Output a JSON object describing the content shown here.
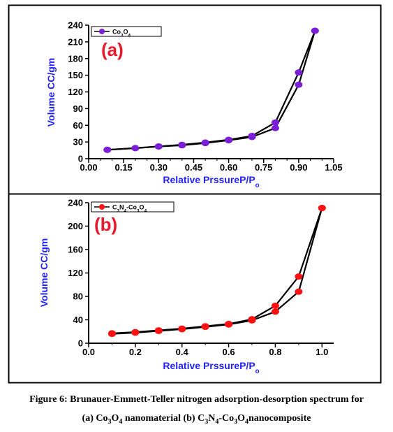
{
  "caption": {
    "line1": "Figure 6: Brunauer-Emmett-Teller nitrogen adsorption-desorption spectrum for",
    "line2_prefix": "(a) Co",
    "line2_a_sub1": "3",
    "line2_a_mid": "O",
    "line2_a_sub2": "4",
    "line2_a_rest": " nanomaterial (b) C",
    "line2_b_sub1": "3",
    "line2_b_n": "N",
    "line2_b_sub2": "4",
    "line2_b_co": "-Co",
    "line2_b_sub3": "3",
    "line2_b_o": "O",
    "line2_b_sub4": "4",
    "line2_b_rest": "nanocomposite"
  },
  "colors": {
    "axis_label": "#1f1fff",
    "panel_label": "#e8192c",
    "series_a": "#7a1fd6",
    "series_b": "#ff1111",
    "line": "#000000"
  },
  "chart_data": [
    {
      "type": "line",
      "panel_label": "(a)",
      "xlabel": "Relative PrssureP/P",
      "xlabel_sub": "o",
      "ylabel": "Volume CC/gm",
      "xlim": [
        0.0,
        1.05
      ],
      "ylim": [
        0,
        240
      ],
      "x_ticks": [
        "0.00",
        "0.15",
        "0.30",
        "0.45",
        "0.60",
        "0.75",
        "0.90",
        "1.05"
      ],
      "x_tick_values": [
        0.0,
        0.15,
        0.3,
        0.45,
        0.6,
        0.75,
        0.9,
        1.05
      ],
      "x_minor_ticks": [
        "0.05",
        "0.10",
        "0.20",
        "0.25",
        "0.35",
        "0.40",
        "0.50",
        "0.55",
        "0.65",
        "0.70",
        "0.80",
        "0.85",
        "0.95",
        "1.00"
      ],
      "x_minor_values": [
        0.05,
        0.1,
        0.2,
        0.25,
        0.35,
        0.4,
        0.5,
        0.55,
        0.65,
        0.7,
        0.8,
        0.85,
        0.95,
        1.0
      ],
      "y_ticks": [
        "0",
        "30",
        "60",
        "90",
        "120",
        "150",
        "180",
        "210",
        "240"
      ],
      "y_tick_values": [
        0,
        30,
        60,
        90,
        120,
        150,
        180,
        210,
        240
      ],
      "legend": {
        "text": "Co",
        "sub1": "3",
        "text2": "O",
        "sub2": "4",
        "placement": "top-left"
      },
      "grid": false,
      "series": [
        {
          "name": "Co3O4",
          "adsorption": {
            "x": [
              0.08,
              0.2,
              0.3,
              0.4,
              0.5,
              0.6,
              0.7,
              0.8,
              0.9,
              0.97
            ],
            "y": [
              16,
              19,
              22,
              24,
              28,
              33,
              39,
              55,
              133,
              230
            ]
          },
          "desorption": {
            "x": [
              0.97,
              0.9,
              0.8,
              0.7,
              0.6,
              0.5,
              0.4,
              0.3,
              0.2,
              0.08
            ],
            "y": [
              230,
              155,
              65,
              41,
              34,
              29,
              25,
              22,
              19,
              16
            ]
          }
        }
      ]
    },
    {
      "type": "line",
      "panel_label": "(b)",
      "xlabel": "Relative PrssureP/P",
      "xlabel_sub": "o",
      "ylabel": "Volume CC/gm",
      "xlim": [
        0.0,
        1.05
      ],
      "ylim": [
        0,
        240
      ],
      "x_ticks": [
        "0.0",
        "0.2",
        "0.4",
        "0.6",
        "0.8",
        "1.0"
      ],
      "x_tick_values": [
        0.0,
        0.2,
        0.4,
        0.6,
        0.8,
        1.0
      ],
      "x_minor_ticks": [
        "0.1",
        "0.3",
        "0.5",
        "0.7",
        "0.9"
      ],
      "x_minor_values": [
        0.1,
        0.3,
        0.5,
        0.7,
        0.9
      ],
      "y_ticks": [
        "0",
        "40",
        "80",
        "120",
        "160",
        "200",
        "240"
      ],
      "y_tick_values": [
        0,
        40,
        80,
        120,
        160,
        200,
        240
      ],
      "legend": {
        "text": "C",
        "sub1": "3",
        "text2": "N",
        "sub2": "4",
        "text3": "-Co",
        "sub3": "3",
        "text4": "O",
        "sub4": "4",
        "placement": "top-left"
      },
      "grid": false,
      "series": [
        {
          "name": "C3N4-Co3O4",
          "adsorption": {
            "x": [
              0.1,
              0.2,
              0.3,
              0.4,
              0.5,
              0.6,
              0.7,
              0.8,
              0.9,
              1.0
            ],
            "y": [
              16,
              18,
              21,
              24,
              28,
              32,
              39,
              54,
              88,
              231
            ]
          },
          "desorption": {
            "x": [
              1.0,
              0.9,
              0.8,
              0.7,
              0.6,
              0.5,
              0.4,
              0.3,
              0.2,
              0.1
            ],
            "y": [
              231,
              114,
              64,
              41,
              33,
              29,
              25,
              22,
              19,
              17
            ]
          }
        }
      ]
    }
  ]
}
